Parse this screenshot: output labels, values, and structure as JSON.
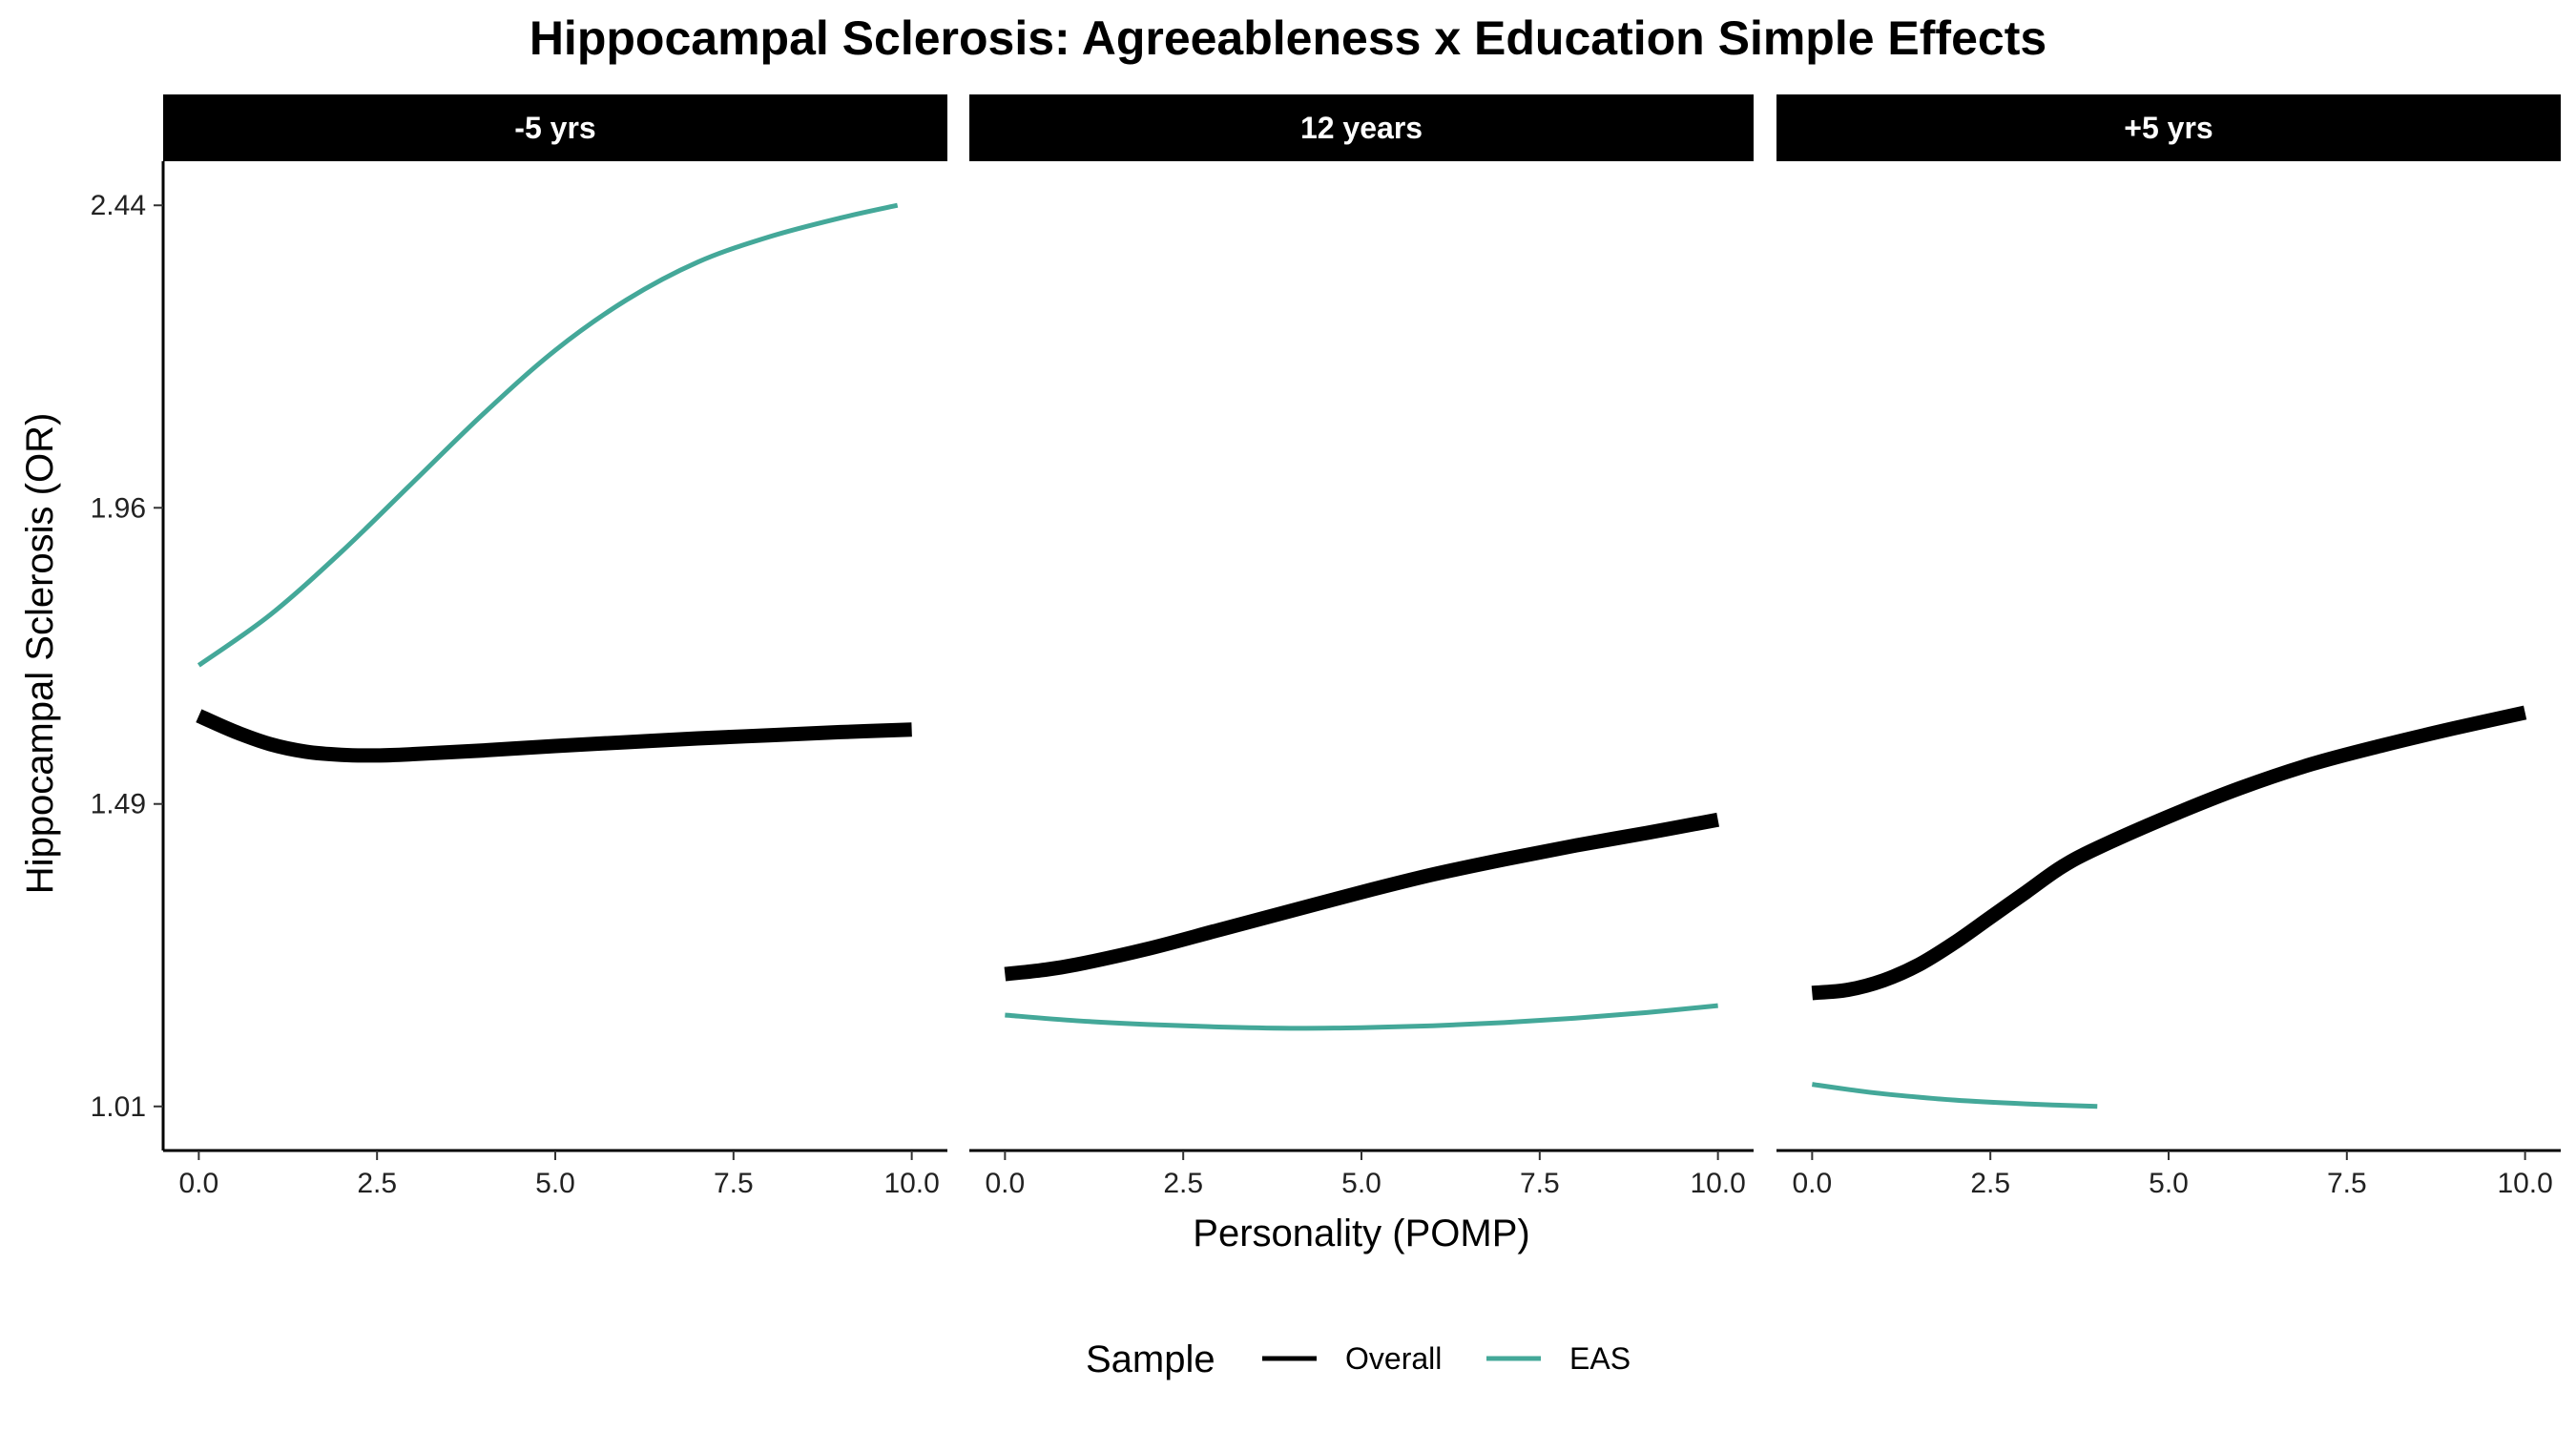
{
  "chart_data": {
    "type": "line",
    "title": "Hippocampal Sclerosis: Agreeableness x Education Simple Effects",
    "xlabel": "Personality (POMP)",
    "ylabel": "Hippocampal Sclerosis (OR)",
    "xlim": [
      -0.5,
      10.5
    ],
    "ylim": [
      0.94,
      2.51
    ],
    "x_ticks": [
      0,
      2.5,
      5,
      7.5,
      10
    ],
    "x_tick_labels": [
      "0.0",
      "2.5",
      "5.0",
      "7.5",
      "10.0"
    ],
    "y_ticks": [
      1.01,
      1.49,
      1.96,
      2.44
    ],
    "y_tick_labels": [
      "1.01",
      "1.49",
      "1.96",
      "2.44"
    ],
    "grid": false,
    "legend": {
      "title": "Sample",
      "placement": "bottom",
      "entries": [
        {
          "name": "Overall",
          "color": "#000000"
        },
        {
          "name": "EAS",
          "color": "#44a899"
        }
      ]
    },
    "panels": [
      {
        "label": "-5 yrs",
        "series": [
          {
            "name": "EAS",
            "x": [
              0,
              1,
              2,
              3,
              4,
              5,
              6,
              7,
              8,
              9,
              9.8
            ],
            "y": [
              1.71,
              1.79,
              1.89,
              2.0,
              2.11,
              2.21,
              2.29,
              2.35,
              2.39,
              2.42,
              2.44
            ]
          },
          {
            "name": "Overall",
            "x": [
              0,
              0.5,
              1,
              1.5,
              2,
              2.5,
              3,
              4,
              5,
              6,
              7,
              8,
              9,
              10
            ],
            "y": [
              1.63,
              1.605,
              1.585,
              1.573,
              1.568,
              1.567,
              1.569,
              1.575,
              1.582,
              1.588,
              1.594,
              1.599,
              1.604,
              1.608
            ]
          }
        ]
      },
      {
        "label": "12 years",
        "series": [
          {
            "name": "EAS",
            "x": [
              0,
              1,
              2,
              3,
              4,
              5,
              6,
              7,
              8,
              9,
              10
            ],
            "y": [
              1.155,
              1.146,
              1.14,
              1.136,
              1.134,
              1.135,
              1.138,
              1.143,
              1.15,
              1.159,
              1.17
            ]
          },
          {
            "name": "Overall",
            "x": [
              0,
              0.5,
              1,
              2,
              3,
              4,
              5,
              6,
              7,
              8,
              9,
              10
            ],
            "y": [
              1.22,
              1.226,
              1.235,
              1.26,
              1.29,
              1.32,
              1.35,
              1.378,
              1.402,
              1.424,
              1.444,
              1.465
            ]
          }
        ]
      },
      {
        "label": "+5 yrs",
        "series": [
          {
            "name": "EAS",
            "x": [
              0,
              0.5,
              1,
              2,
              3,
              4
            ],
            "y": [
              1.045,
              1.037,
              1.03,
              1.02,
              1.014,
              1.01
            ]
          },
          {
            "name": "Overall",
            "x": [
              0,
              0.5,
              1,
              1.5,
              2,
              2.5,
              3,
              3.5,
              4,
              5,
              6,
              7,
              8,
              9,
              10
            ],
            "y": [
              1.19,
              1.195,
              1.21,
              1.235,
              1.27,
              1.31,
              1.35,
              1.39,
              1.42,
              1.47,
              1.515,
              1.553,
              1.583,
              1.61,
              1.635
            ]
          }
        ]
      }
    ]
  }
}
